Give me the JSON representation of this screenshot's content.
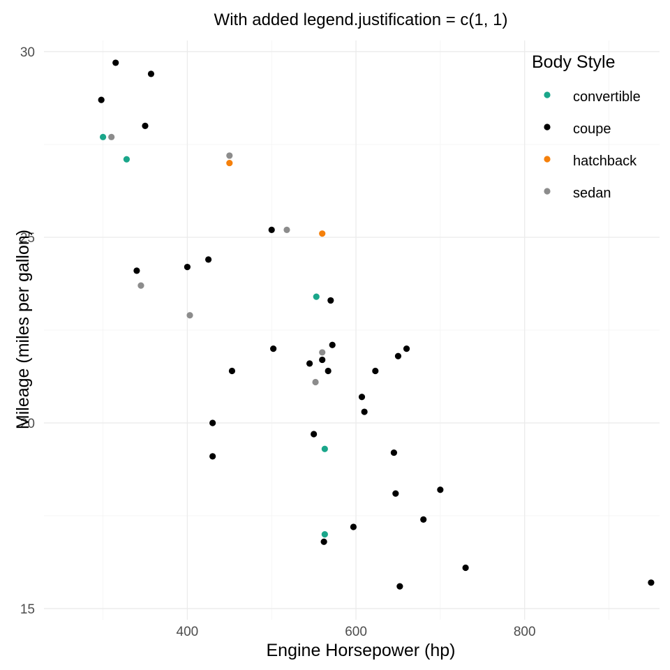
{
  "chart_data": {
    "type": "scatter",
    "title": "With added legend.justification = c(1, 1)",
    "xlabel": "Engine Horsepower (hp)",
    "ylabel": "Mileage (miles per gallon)",
    "xlim": [
      230,
      960
    ],
    "ylim": [
      14.7,
      30.3
    ],
    "x_ticks": [
      400,
      600,
      800
    ],
    "y_ticks": [
      15,
      20,
      25,
      30
    ],
    "grid": true,
    "legend": {
      "title": "Body Style",
      "placement": "top-right",
      "entries": [
        {
          "label": "convertible",
          "color": "#1aa68a"
        },
        {
          "label": "coupe",
          "color": "#000000"
        },
        {
          "label": "hatchback",
          "color": "#f5800b"
        },
        {
          "label": "sedan",
          "color": "#8c8c8c"
        }
      ]
    },
    "series": [
      {
        "name": "convertible",
        "color": "#1aa68a",
        "points": [
          [
            300,
            27.7
          ],
          [
            328,
            27.1
          ],
          [
            553,
            23.4
          ],
          [
            563,
            19.3
          ],
          [
            563,
            17.0
          ]
        ]
      },
      {
        "name": "coupe",
        "color": "#000000",
        "points": [
          [
            315,
            29.7
          ],
          [
            357,
            29.4
          ],
          [
            298,
            28.7
          ],
          [
            350,
            28.0
          ],
          [
            500,
            25.2
          ],
          [
            425,
            24.4
          ],
          [
            400,
            24.2
          ],
          [
            340,
            24.1
          ],
          [
            570,
            23.3
          ],
          [
            572,
            22.1
          ],
          [
            660,
            22.0
          ],
          [
            502,
            22.0
          ],
          [
            650,
            21.8
          ],
          [
            545,
            21.6
          ],
          [
            560,
            21.7
          ],
          [
            453,
            21.4
          ],
          [
            567,
            21.4
          ],
          [
            623,
            21.4
          ],
          [
            607,
            20.7
          ],
          [
            610,
            20.3
          ],
          [
            430,
            20.0
          ],
          [
            550,
            19.7
          ],
          [
            645,
            19.2
          ],
          [
            430,
            19.1
          ],
          [
            700,
            18.2
          ],
          [
            647,
            18.1
          ],
          [
            680,
            17.4
          ],
          [
            597,
            17.2
          ],
          [
            562,
            16.8
          ],
          [
            730,
            16.1
          ],
          [
            652,
            15.6
          ],
          [
            950,
            15.7
          ]
        ]
      },
      {
        "name": "hatchback",
        "color": "#f5800b",
        "points": [
          [
            450,
            27.0
          ],
          [
            560,
            25.1
          ]
        ]
      },
      {
        "name": "sedan",
        "color": "#8c8c8c",
        "points": [
          [
            310,
            27.7
          ],
          [
            450,
            27.2
          ],
          [
            518,
            25.2
          ],
          [
            345,
            23.7
          ],
          [
            403,
            22.9
          ],
          [
            560,
            21.9
          ],
          [
            552,
            21.1
          ]
        ]
      }
    ]
  }
}
